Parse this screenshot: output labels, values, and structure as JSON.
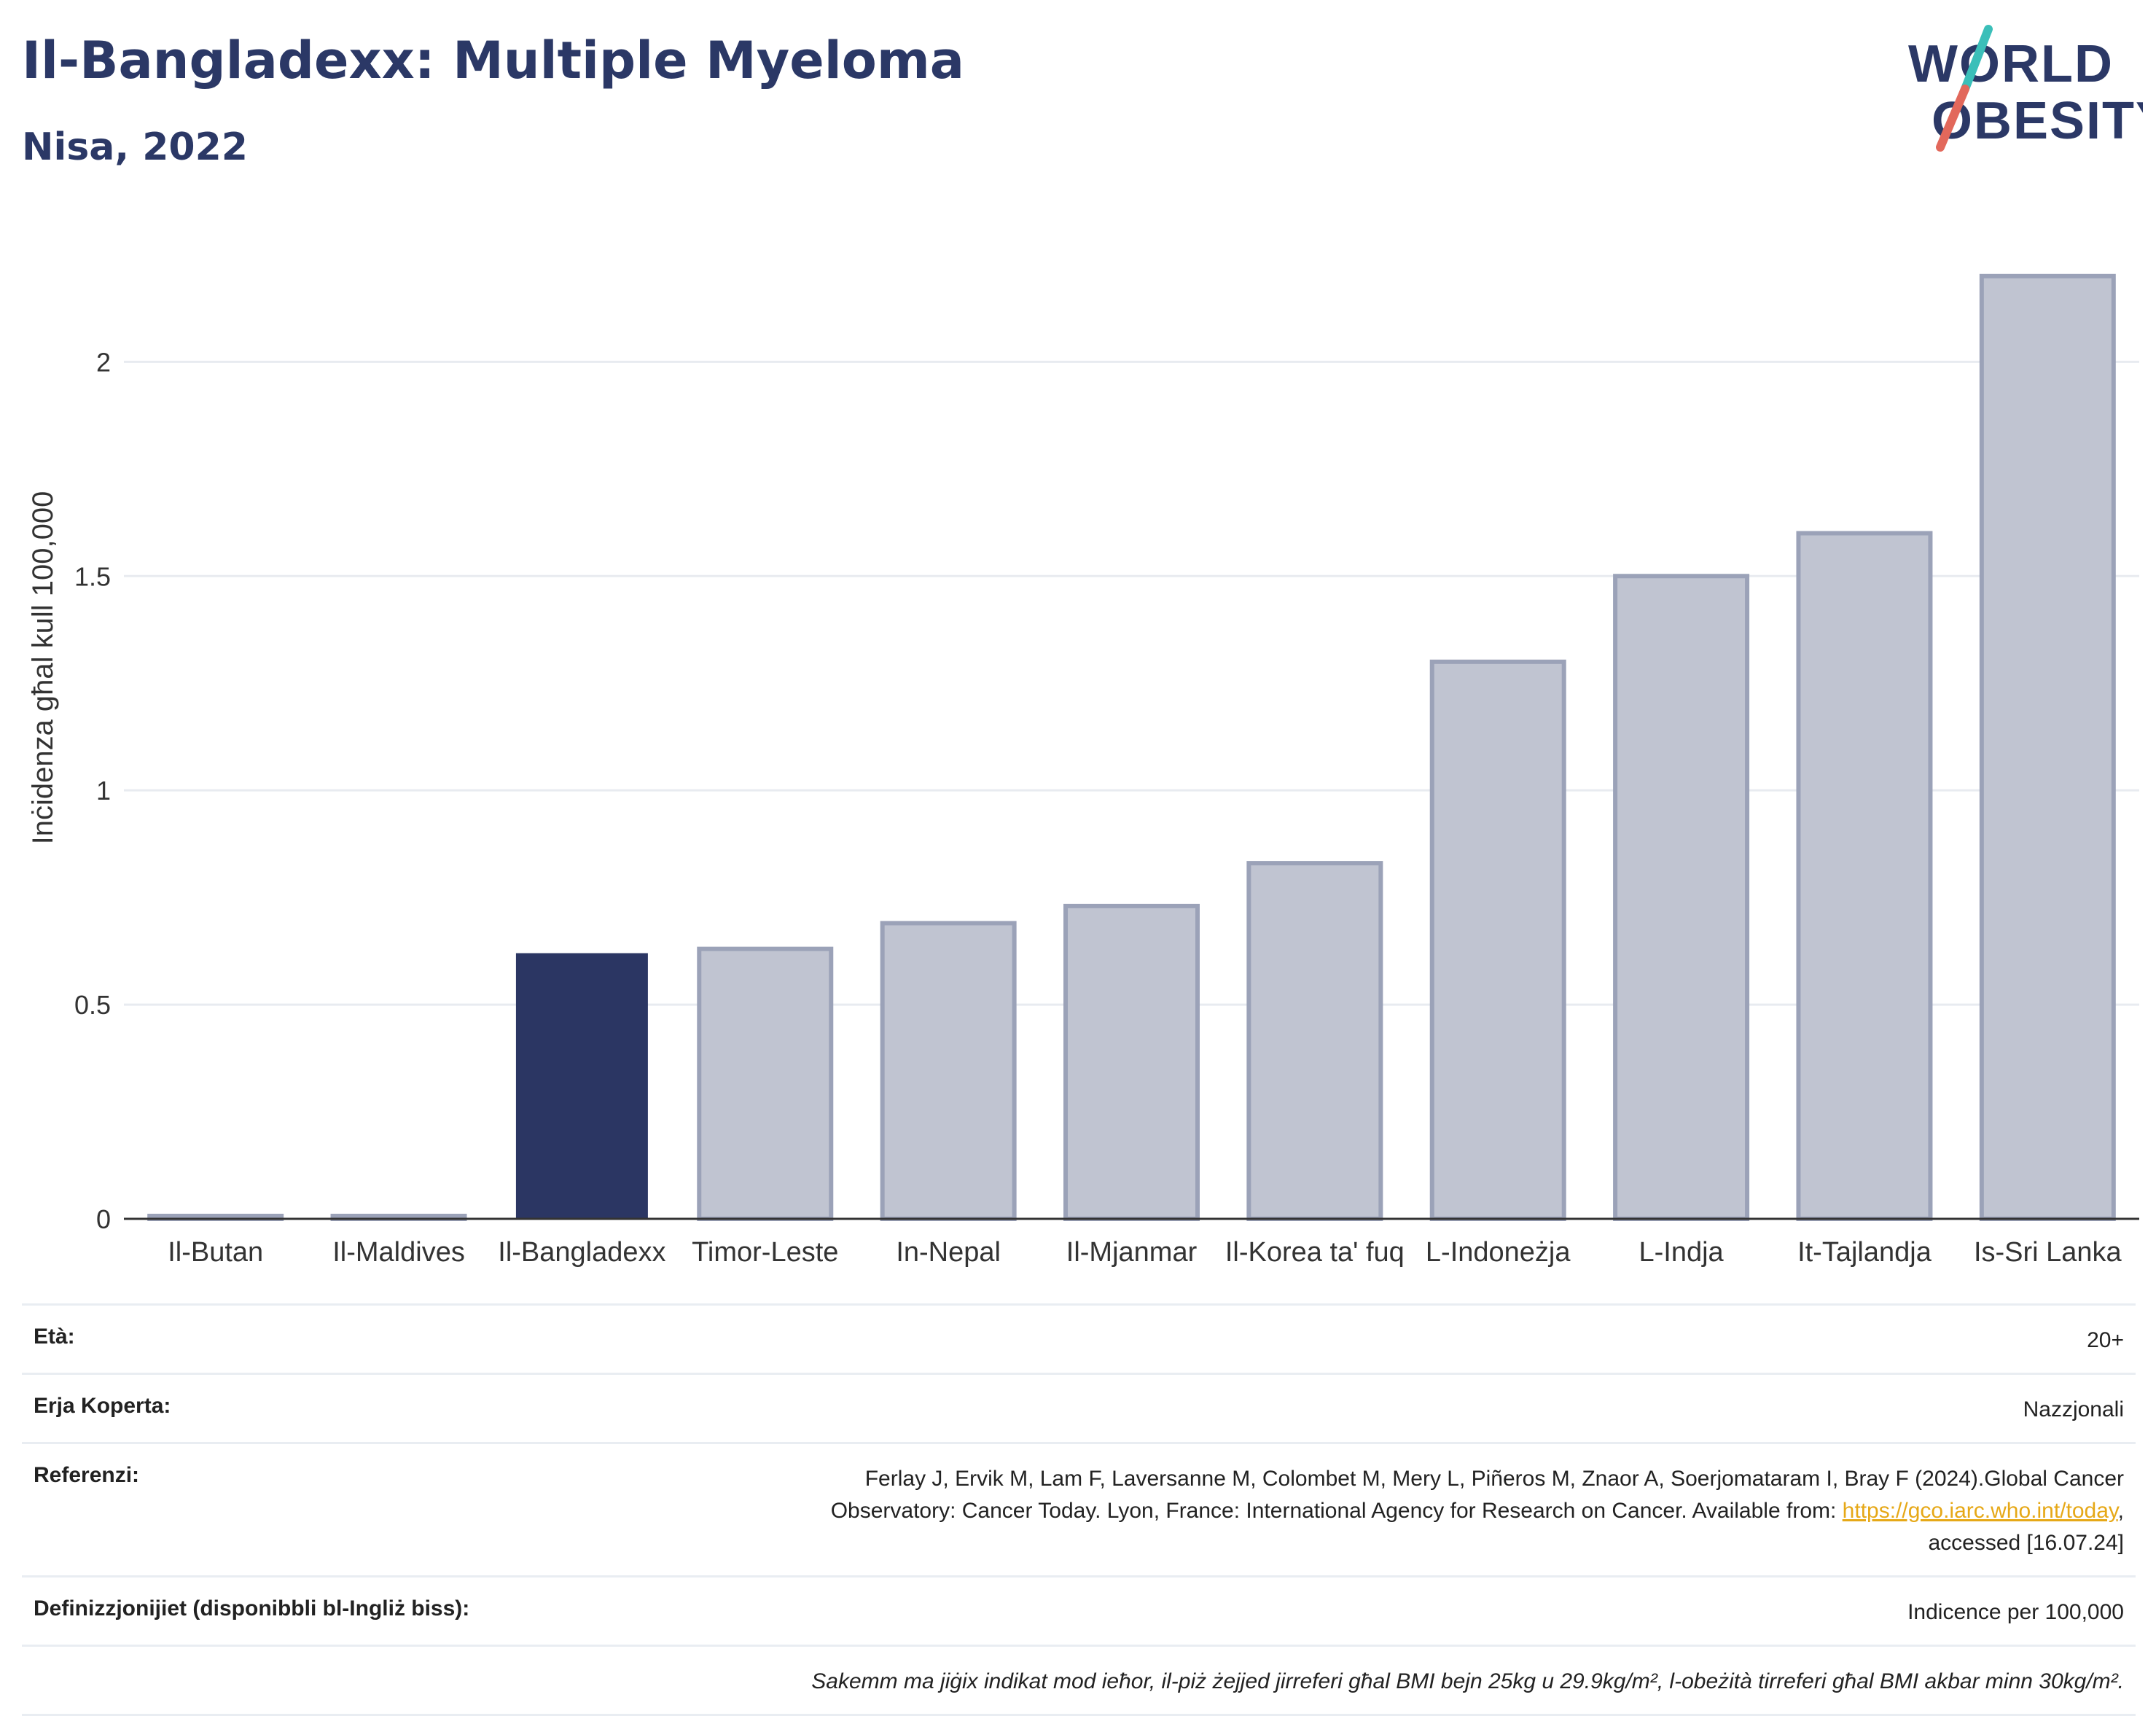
{
  "header": {
    "title": "Il-Bangladexx: Multiple Myeloma",
    "subtitle": "Nisa, 2022"
  },
  "logo": {
    "line1": "WORLD",
    "line2": "OBESITY",
    "colors": {
      "text": "#2b3866",
      "slash_top": "#3bbfb9",
      "slash_bottom": "#e2685b"
    }
  },
  "chart_data": {
    "type": "bar",
    "title": "Il-Bangladexx: Multiple Myeloma",
    "subtitle": "Nisa, 2022",
    "ylabel": "Inċidenza għal kull 100,000",
    "xlabel": "",
    "categories": [
      "Il-Butan",
      "Il-Maldives",
      "Il-Bangladexx",
      "Timor-Leste",
      "In-Nepal",
      "Il-Mjanmar",
      "Il-Korea ta' fuq",
      "L-Indoneżja",
      "L-Indja",
      "It-Tajlandja",
      "Is-Sri Lanka"
    ],
    "values": [
      0,
      0,
      0.62,
      0.63,
      0.69,
      0.73,
      0.83,
      1.3,
      1.5,
      1.6,
      2.2
    ],
    "highlight": "Il-Bangladexx",
    "ylim": [
      0,
      2.3
    ],
    "yticks": [
      0,
      0.5,
      1,
      1.5,
      2
    ],
    "ytick_labels": [
      "0",
      "0.5",
      "1",
      "1.5",
      "2"
    ],
    "grid": true,
    "colors": {
      "highlight": "#2b3663",
      "other_fill": "#c0c4d1",
      "other_stroke": "#9ba2b8",
      "grid": "#e8ebf0",
      "axis": "#333333"
    }
  },
  "meta": {
    "age_label": "Età:",
    "age_value": "20+",
    "area_label": "Erja Koperta:",
    "area_value": "Nazzjonali",
    "ref_label": "Referenzi:",
    "ref_line1": "Ferlay J, Ervik M, Lam F, Laversanne M, Colombet M, Mery L, Piñeros M, Znaor A, Soerjomataram I, Bray F (2024).Global Cancer",
    "ref_line2_pre": "Observatory: Cancer Today. Lyon, France: International Agency for Research on Cancer. Available from: ",
    "ref_link": "https://gco.iarc.who.int/today",
    "ref_line2_post": ",",
    "ref_line3": "accessed [16.07.24]",
    "def_label": "Definizzjonijiet (disponibbli bl-Ingliż biss):",
    "def_value": "Indicence per 100,000",
    "note": "Sakemm ma jiġix indikat mod ieħor, il-piż żejjed jirreferi għal BMI bejn 25kg u 29.9kg/m², l-obeżità tirreferi għal BMI akbar minn 30kg/m²."
  }
}
